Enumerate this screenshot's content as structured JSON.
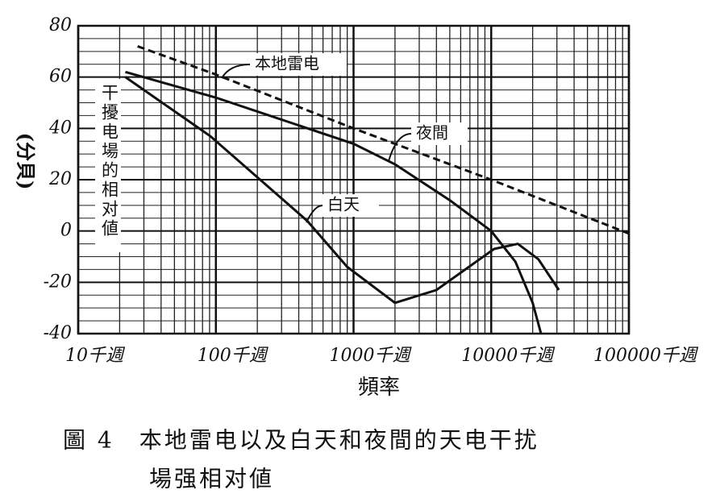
{
  "chart_data": {
    "type": "line",
    "x_label": "頻率",
    "y_label": "(分貝)",
    "inner_label": "干擾电場的相对値",
    "caption": [
      "圖 4　本地雷电以及白天和夜間的天电干扰",
      "場强相对値"
    ],
    "log_x": true,
    "grid": true,
    "minor_grid": true,
    "xlim": [
      10,
      100000
    ],
    "ylim": [
      -40,
      80
    ],
    "xticks": [
      {
        "value": 10,
        "label": "10千週"
      },
      {
        "value": 100,
        "label": "100千週"
      },
      {
        "value": 1000,
        "label": "1000千週"
      },
      {
        "value": 10000,
        "label": "10000千週"
      },
      {
        "value": 100000,
        "label": "100000千週"
      }
    ],
    "yticks": [
      80,
      60,
      40,
      20,
      0,
      -20,
      -40
    ],
    "series": [
      {
        "name": "本地雷电",
        "color": "#111111",
        "dashed": true,
        "x": [
          27,
          100,
          1000,
          10000,
          100000
        ],
        "values": [
          72,
          61,
          40,
          20,
          -1
        ]
      },
      {
        "name": "夜間",
        "color": "#111111",
        "dashed": false,
        "x": [
          22,
          100,
          1000,
          2000,
          5000,
          10000,
          15000,
          20000,
          23000
        ],
        "values": [
          62,
          52,
          34,
          26,
          12,
          0,
          -12,
          -28,
          -40
        ]
      },
      {
        "name": "白天",
        "color": "#111111",
        "dashed": false,
        "x": [
          22,
          91,
          460,
          900,
          2000,
          4000,
          10500,
          15600,
          22000,
          31000
        ],
        "values": [
          60,
          37,
          4,
          -14,
          -28,
          -23,
          -7,
          -5,
          -11,
          -23
        ]
      }
    ]
  }
}
